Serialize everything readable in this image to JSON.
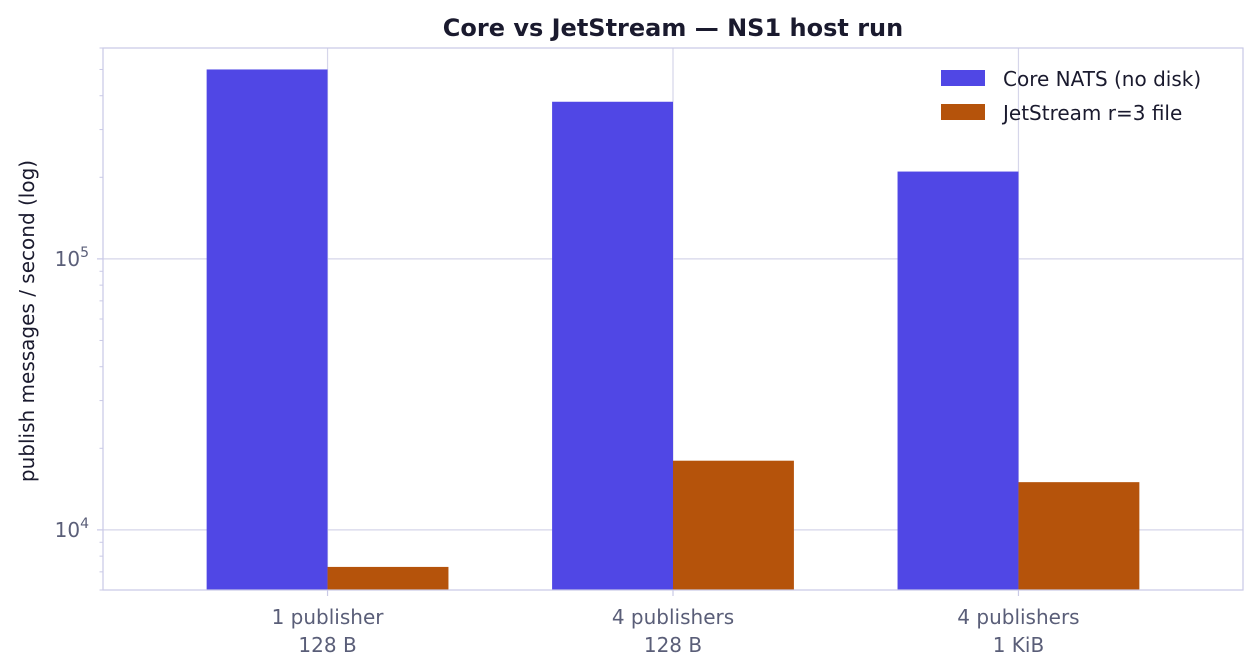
{
  "chart_data": {
    "type": "bar",
    "title": "Core vs JetStream — NS1 host run",
    "xlabel": "",
    "ylabel": "publish messages / second (log)",
    "yscale": "log",
    "ylim": [
      6000,
      600000
    ],
    "yticks": [
      {
        "value": 10000,
        "base": "10",
        "exp": "4"
      },
      {
        "value": 100000,
        "base": "10",
        "exp": "5"
      }
    ],
    "categories": [
      [
        "1 publisher",
        "128 B"
      ],
      [
        "4 publishers",
        "128 B"
      ],
      [
        "4 publishers",
        "1 KiB"
      ]
    ],
    "series": [
      {
        "name": "Core NATS (no disk)",
        "color": "#5047e5",
        "values": [
          500000,
          380000,
          210000
        ]
      },
      {
        "name": "JetStream r=3 file",
        "color": "#b5530b",
        "values": [
          7300,
          18000,
          15000
        ]
      }
    ],
    "grid": true,
    "legend": "top-right",
    "colors": {
      "grid": "#d6d6ea",
      "axis": "#c9c9e6",
      "text": "#1a1a2e",
      "tick_text": "#5a5e78"
    }
  }
}
